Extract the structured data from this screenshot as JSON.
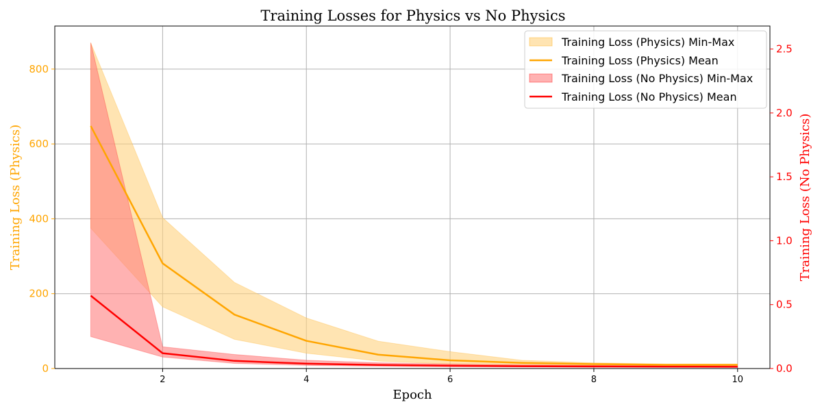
{
  "chart_data": {
    "type": "line",
    "title": "Training Losses for Physics vs No Physics",
    "xlabel": "Epoch",
    "ylabel_left": "Training Loss (Physics)",
    "ylabel_right": "Training Loss (No Physics)",
    "xlim": [
      0.5,
      10.45
    ],
    "ylim_left": [
      0,
      915
    ],
    "ylim_right": [
      0,
      2.68
    ],
    "x_ticks": [
      2,
      4,
      6,
      8,
      10
    ],
    "y_ticks_left": [
      0,
      200,
      400,
      600,
      800
    ],
    "y_ticks_right": [
      0.0,
      0.5,
      1.0,
      1.5,
      2.0,
      2.5
    ],
    "grid": true,
    "legend_position": "top-right",
    "colors": {
      "physics": "#FFA500",
      "physics_band": "#FFD27F",
      "no_physics": "#FF0000",
      "no_physics_band": "#FF7F7F",
      "grid": "#b0b0b0",
      "axis": "#000000"
    },
    "x": [
      1,
      2,
      3,
      4,
      5,
      6,
      7,
      8,
      9,
      10
    ],
    "series": [
      {
        "name": "Training Loss (Physics) Mean",
        "axis": "left",
        "mean": [
          648,
          281,
          144,
          74,
          37,
          22,
          15,
          12,
          10,
          10
        ],
        "min": [
          375,
          165,
          78,
          41,
          20,
          12,
          9,
          8,
          7,
          7
        ],
        "max": [
          870,
          403,
          230,
          135,
          73,
          45,
          22,
          15,
          12,
          11
        ]
      },
      {
        "name": "Training Loss (No Physics) Mean",
        "axis": "right",
        "mean": [
          0.57,
          0.12,
          0.06,
          0.038,
          0.028,
          0.022,
          0.018,
          0.016,
          0.015,
          0.014
        ],
        "min": [
          0.25,
          0.09,
          0.04,
          0.025,
          0.018,
          0.014,
          0.012,
          0.011,
          0.01,
          0.009
        ],
        "max": [
          2.55,
          0.17,
          0.11,
          0.065,
          0.045,
          0.035,
          0.028,
          0.024,
          0.021,
          0.019
        ]
      }
    ],
    "legend": [
      "Training Loss (Physics) Min-Max",
      "Training Loss (Physics) Mean",
      "Training Loss (No Physics) Min-Max",
      "Training Loss (No Physics) Mean"
    ]
  }
}
